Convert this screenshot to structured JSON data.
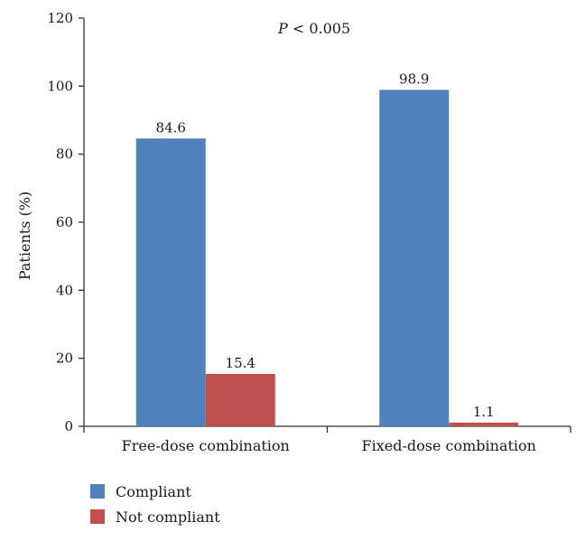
{
  "chart_data": {
    "type": "bar",
    "categories": [
      "Free-dose combination",
      "Fixed-dose combination"
    ],
    "series": [
      {
        "name": "Compliant",
        "color": "#4f81bd",
        "values": [
          84.6,
          98.9
        ],
        "labels": [
          "84.6",
          "98.9"
        ]
      },
      {
        "name": "Not compliant",
        "color": "#c0504d",
        "values": [
          15.4,
          1.1
        ],
        "labels": [
          "15.4",
          "1.1"
        ]
      }
    ],
    "ylabel": "Patients (%)",
    "xlabel": "",
    "ylim": [
      0,
      120
    ],
    "yticks": [
      0,
      20,
      40,
      60,
      80,
      100,
      120
    ],
    "annotation": {
      "prefix": "P",
      "text": " < 0.005"
    },
    "legend_position": "bottom-left",
    "grid": false
  }
}
